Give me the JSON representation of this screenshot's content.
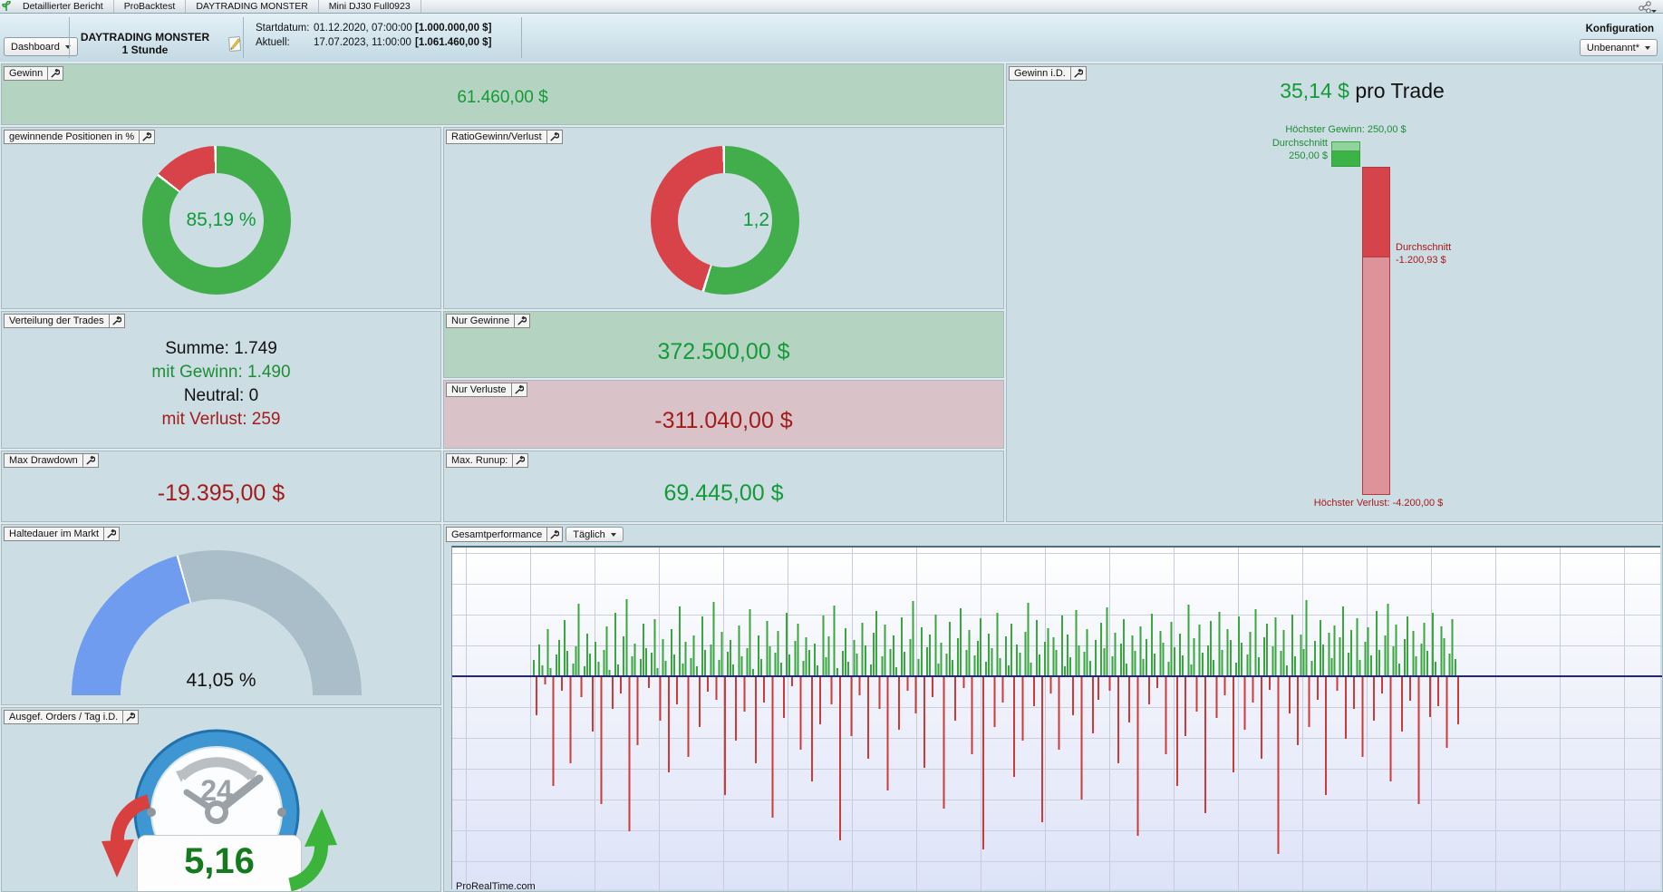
{
  "colors": {
    "green_text": "#149a38",
    "red_text": "#a31c1c",
    "donut_green": "#41ae4b",
    "donut_red": "#d8434a",
    "gauge_blue": "#6f9cee",
    "gauge_gray": "#a9bec9",
    "hist_green": "#3aa63e",
    "hist_red": "#ce3a3a",
    "zero_line": "#232388",
    "panel_green_bg": "#b4d4c1",
    "panel_red_bg": "#d9c3c9"
  },
  "tab_bar": {
    "app_icon": "sprout-icon",
    "tabs": [
      {
        "label": "Detaillierter Bericht"
      },
      {
        "label": "ProBacktest"
      },
      {
        "label": "DAYTRADING MONSTER"
      },
      {
        "label": "Mini DJ30 Full0923"
      }
    ],
    "share_icon": "share-icon"
  },
  "toolbar": {
    "dashboard_select": {
      "value": "Dashboard"
    },
    "strategy": {
      "name": "DAYTRADING MONSTER",
      "timeframe": "1 Stunde"
    },
    "start": {
      "label": "Startdatum:",
      "datetime": "01.12.2020, 07:00:00",
      "amount": "[1.000.000,00 $]"
    },
    "current": {
      "label": "Aktuell:",
      "datetime": "17.07.2023, 11:00:00",
      "amount": "[1.061.460,00 $]"
    },
    "konfiguration": {
      "label": "Konfiguration",
      "select_value": "Unbenannt*"
    }
  },
  "panels": {
    "gewinn": {
      "label": "Gewinn",
      "value": "61.460,00 $"
    },
    "winning_positions": {
      "label": "gewinnende Positionen in %"
    },
    "ratio": {
      "label": "RatioGewinn/Verlust"
    },
    "verteilung": {
      "label": "Verteilung der Trades",
      "rows": [
        {
          "text": "Summe: 1.749",
          "kind": "total"
        },
        {
          "text": "mit Gewinn: 1.490",
          "kind": "gain"
        },
        {
          "text": "Neutral: 0",
          "kind": "neutral"
        },
        {
          "text": "mit Verlust: 259",
          "kind": "loss"
        }
      ]
    },
    "nur_gewinne": {
      "label": "Nur Gewinne",
      "value": "372.500,00 $"
    },
    "nur_verluste": {
      "label": "Nur Verluste",
      "value": "-311.040,00 $"
    },
    "max_drawdown": {
      "label": "Max Drawdown",
      "value": "-19.395,00 $"
    },
    "max_runup": {
      "label": "Max. Runup:",
      "value": "69.445,00 $"
    },
    "haltedauer": {
      "label": "Haltedauer im Markt"
    },
    "orders": {
      "label": "Ausgef. Orders / Tag i.D.",
      "value": "5,16",
      "clock_number": "24"
    },
    "gewinn_id": {
      "label": "Gewinn i.D."
    },
    "gesamtperformance": {
      "label": "Gesamtperformance",
      "period_select": "Täglich",
      "watermark": "ProRealTime.com"
    }
  },
  "chart_data": [
    {
      "type": "pie",
      "subtype": "donut",
      "title": "gewinnende Positionen in %",
      "labels": [
        "mit Gewinn",
        "mit Verlust"
      ],
      "values": [
        85.19,
        14.81
      ],
      "unit": "%",
      "center_label": "85,19 %",
      "colors": [
        "#41ae4b",
        "#d8434a"
      ]
    },
    {
      "type": "pie",
      "subtype": "donut",
      "title": "RatioGewinn/Verlust",
      "labels": [
        "Gewinn",
        "Verlust"
      ],
      "values": [
        54.5,
        45.5
      ],
      "ratio": 1.2,
      "center_label": "1,2",
      "colors": [
        "#41ae4b",
        "#d8434a"
      ]
    },
    {
      "type": "gauge",
      "title": "Haltedauer im Markt",
      "value": 41.05,
      "range": [
        0,
        100
      ],
      "unit": "%",
      "label": "41,05 %",
      "colors": [
        "#6f9cee",
        "#a9bec9"
      ]
    },
    {
      "type": "bar",
      "title": "Gewinn i.D.",
      "unit": "$",
      "headline_value": "35,14 $",
      "headline_suffix": "pro Trade",
      "series": [
        {
          "name": "Gewinn",
          "durchschnitt": 250.0,
          "hoechster": 250.0
        },
        {
          "name": "Verlust",
          "durchschnitt": -1200.93,
          "hoechster": -4200.0
        }
      ],
      "annotations": {
        "max_gain": "Höchster Gewinn: 250,00 $",
        "avg_gain_label": "Durchschnitt",
        "avg_gain_value": "250,00 $",
        "avg_loss_label": "Durchschnitt",
        "avg_loss_value": "-1.200,93 $",
        "max_loss": "Höchster Verlust: -4.200,00 $"
      }
    },
    {
      "type": "bar",
      "title": "Gesamtperformance",
      "axis_labels_visible": false,
      "grid": true,
      "zero_line": true,
      "note": "daily P/L histogram; bar magnitudes estimated in plot pixels relative to the zero line",
      "relative_values": [
        18,
        -42,
        35,
        12,
        -8,
        52,
        9,
        -120,
        24,
        40,
        -15,
        62,
        28,
        -95,
        14,
        33,
        80,
        -22,
        11,
        47,
        25,
        -60,
        38,
        16,
        -140,
        29,
        55,
        7,
        -35,
        70,
        13,
        -18,
        44,
        85,
        -170,
        22,
        36,
        -75,
        19,
        58,
        31,
        -12,
        26,
        63,
        9,
        -48,
        41,
        17,
        -105,
        52,
        24,
        -30,
        77,
        14,
        38,
        -88,
        20,
        45,
        11,
        -55,
        66,
        29,
        -16,
        35,
        82,
        -25,
        18,
        49,
        -130,
        27,
        40,
        13,
        -70,
        56,
        22,
        -38,
        31,
        74,
        8,
        -95,
        45,
        19,
        -28,
        61,
        33,
        -155,
        26,
        50,
        15,
        -45,
        70,
        24,
        -10,
        39,
        58,
        -80,
        17,
        43,
        29,
        -115,
        36,
        12,
        -52,
        67,
        21,
        44,
        -30,
        78,
        9,
        -180,
        28,
        53,
        16,
        -65,
        40,
        25,
        -20,
        59,
        34,
        -90,
        13,
        48,
        72,
        -35,
        22,
        57,
        -125,
        30,
        45,
        10,
        -58,
        65,
        27,
        -15,
        41,
        83,
        -40,
        19,
        54,
        -100,
        32,
        46,
        -22,
        68,
        14,
        37,
        -145,
        25,
        60,
        18,
        -48,
        42,
        75,
        -12,
        29,
        51,
        -85,
        23,
        39,
        64,
        -190,
        16,
        47,
        31,
        -55,
        70,
        20,
        -28,
        44,
        12,
        58,
        -110,
        35,
        26,
        -70,
        49,
        81,
        15,
        -32,
        62,
        24,
        -160,
        38,
        53,
        -18,
        43,
        29,
        -80,
        67,
        11,
        46,
        21,
        -42,
        73,
        34,
        -135,
        27,
        52,
        17,
        -62,
        40,
        -25,
        59,
        31,
        76,
        -15,
        22,
        48,
        -95,
        36,
        63,
        14,
        -50,
        45,
        28,
        -175,
        55,
        19,
        41,
        -30,
        69,
        25,
        -12,
        50,
        37,
        -85,
        16,
        60,
        32,
        -120,
        47,
        23,
        -65,
        79,
        13,
        42,
        -38,
        57,
        26,
        -150,
        34,
        61,
        18,
        -45,
        71,
        29,
        -20,
        52,
        40,
        -105,
        15,
        66,
        37,
        -58,
        24,
        49,
        -28,
        74,
        21,
        -90,
        43,
        58,
        -14,
        33,
        65,
        -195,
        28,
        51,
        12,
        -40,
        68,
        22,
        -75,
        46,
        30,
        84,
        -55,
        17,
        39,
        -25,
        62,
        35,
        -130,
        48,
        20,
        56,
        -15,
        43,
        77,
        -68,
        26,
        51,
        -35,
        64,
        18,
        -88,
        38,
        54,
        23,
        -48,
        72,
        29,
        -18,
        45,
        80,
        -115,
        33,
        57,
        14,
        -60,
        41,
        66,
        -26,
        50,
        22,
        -140,
        36,
        59,
        28,
        -44,
        70,
        16,
        -32,
        55,
        42,
        -78,
        25,
        63,
        19,
        -52
      ]
    }
  ]
}
